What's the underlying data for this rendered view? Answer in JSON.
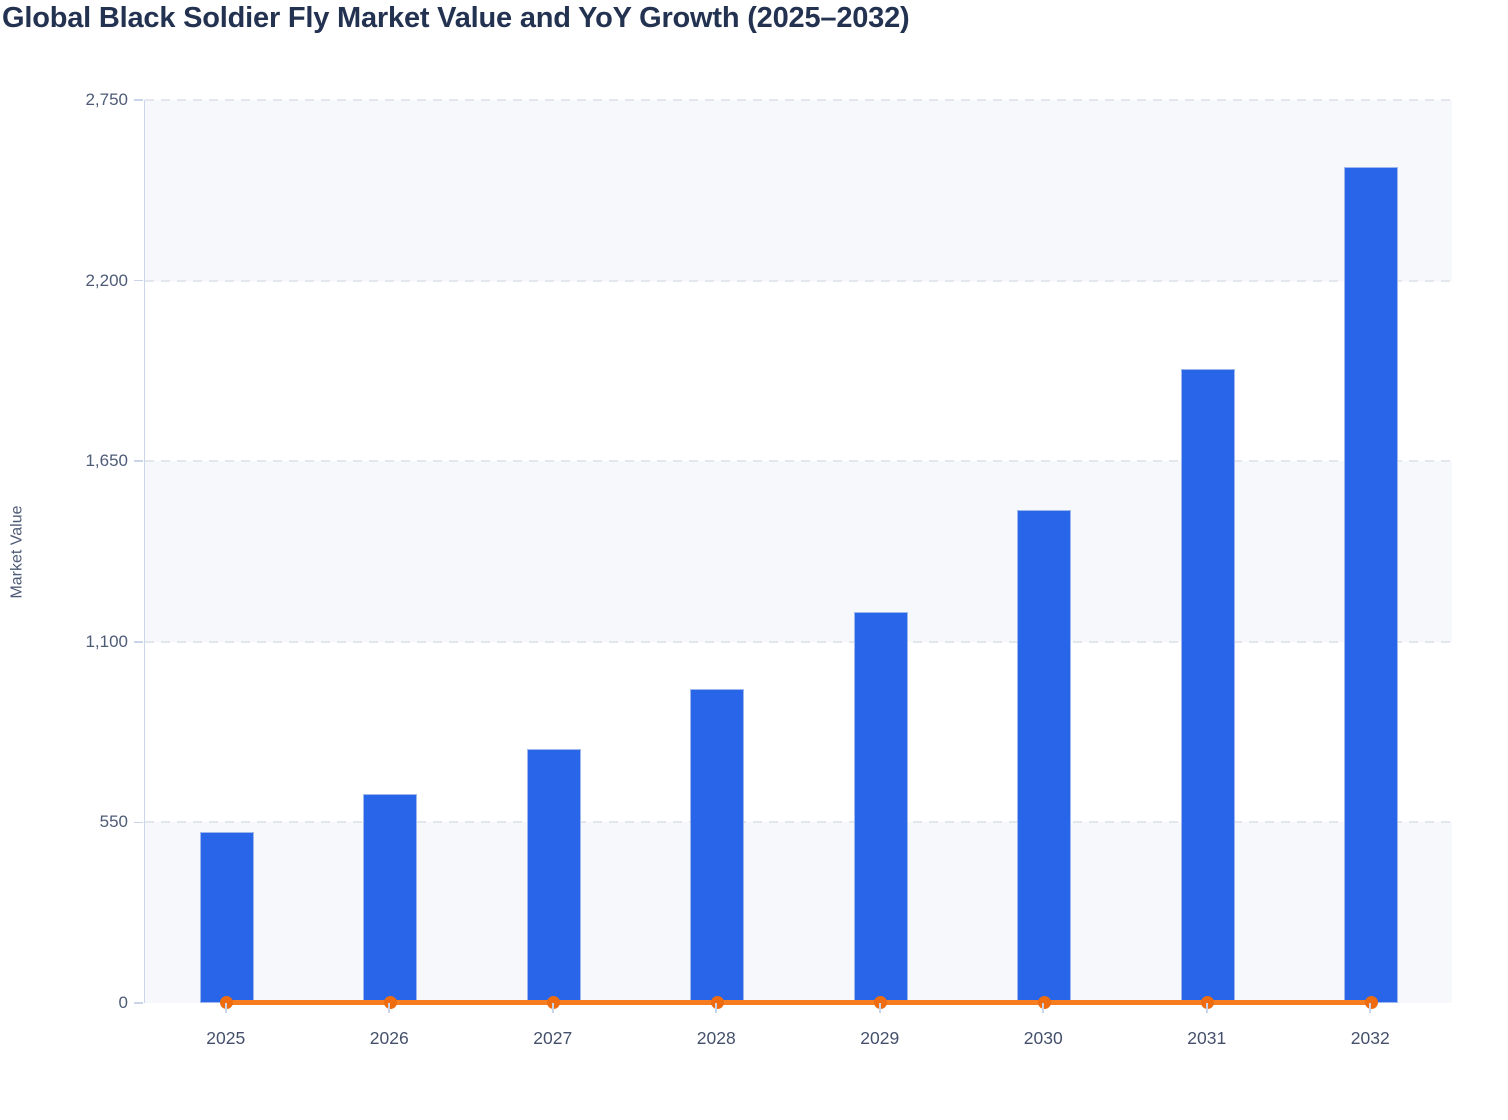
{
  "title": "Global Black Soldier Fly Market Value and YoY Growth (2025–2032)",
  "y_axis": {
    "label": "Market Value",
    "max": 2750,
    "ticks": [
      {
        "v": 0,
        "label": "0"
      },
      {
        "v": 550,
        "label": "550"
      },
      {
        "v": 1100,
        "label": "1,100"
      },
      {
        "v": 1650,
        "label": "1,650"
      },
      {
        "v": 2200,
        "label": "2,200"
      },
      {
        "v": 2750,
        "label": "2,750"
      }
    ]
  },
  "chart_data": {
    "type": "bar",
    "title": "Global Black Soldier Fly Market Value and YoY Growth (2025–2032)",
    "xlabel": "",
    "ylabel": "Market Value",
    "ylim": [
      0,
      2750
    ],
    "grid": "horizontal dashed gridlines with alternating background bands",
    "legend": "none",
    "categories": [
      "2025",
      "2026",
      "2027",
      "2028",
      "2029",
      "2030",
      "2031",
      "2032"
    ],
    "series": [
      {
        "name": "Market Value",
        "type": "bar",
        "color": "#2965e8",
        "values": [
          520,
          635,
          775,
          955,
          1190,
          1500,
          1930,
          2545
        ],
        "values_estimated_from_gridlines": true
      },
      {
        "name": "YoY Growth",
        "type": "line",
        "color": "#f57c1f",
        "marker_color": "#ee6b10",
        "values": [
          0,
          0,
          0,
          0,
          0,
          0,
          0,
          0
        ],
        "note": "YoY growth line renders flat at ~0 on the shared Market Value axis; exact percentages not readable"
      }
    ]
  },
  "colors": {
    "bar_fill": "#2965e8",
    "bar_border": "#9fb8ec",
    "line": "#f57c1f",
    "marker": "#ee6b10",
    "gridline": "#e3e6ec",
    "band_gray": "#f7f8fb",
    "axis_line": "#ccd6ea",
    "title_text": "#233250",
    "axis_text": "#4e5b77"
  }
}
